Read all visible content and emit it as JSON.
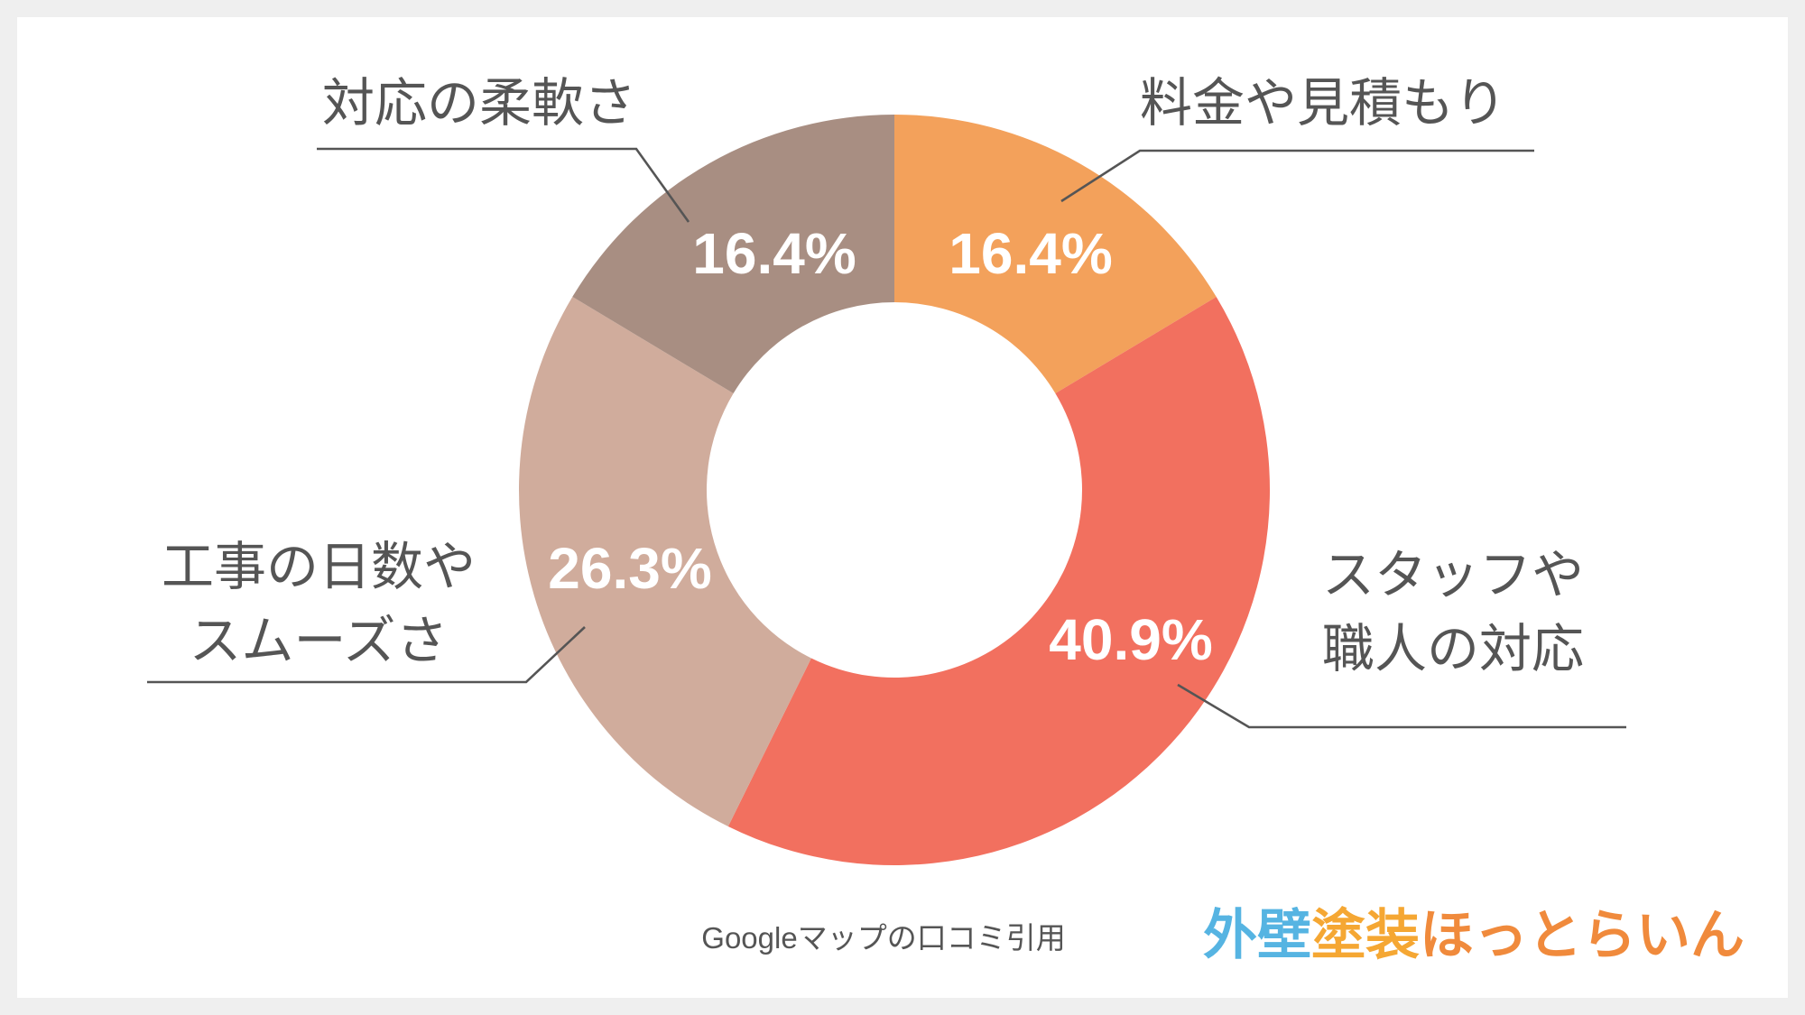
{
  "page": {
    "background": "#efefef",
    "panel": "#ffffff"
  },
  "chart_data": {
    "type": "pie",
    "donut": true,
    "legend": false,
    "title": "",
    "slices": [
      {
        "label_lines": [
          "料金や見積もり"
        ],
        "value": 16.4,
        "value_label": "16.4%",
        "color": "#f3a15b"
      },
      {
        "label_lines": [
          "スタッフや",
          "職人の対応"
        ],
        "value": 40.9,
        "value_label": "40.9%",
        "color": "#f2705f"
      },
      {
        "label_lines": [
          "工事の日数や",
          "スムーズさ"
        ],
        "value": 26.3,
        "value_label": "26.3%",
        "color": "#d0ac9c"
      },
      {
        "label_lines": [
          "対応の柔軟さ"
        ],
        "value": 16.4,
        "value_label": "16.4%",
        "color": "#a88e82"
      }
    ]
  },
  "source_note": "Googleマップの口コミ引用",
  "logo": {
    "parts": [
      {
        "text": "外壁",
        "color": "#56b4e2"
      },
      {
        "text": "塗装",
        "color": "#f5a733"
      },
      {
        "text": "ほっとらいん",
        "color": "#f08a3c"
      }
    ]
  }
}
